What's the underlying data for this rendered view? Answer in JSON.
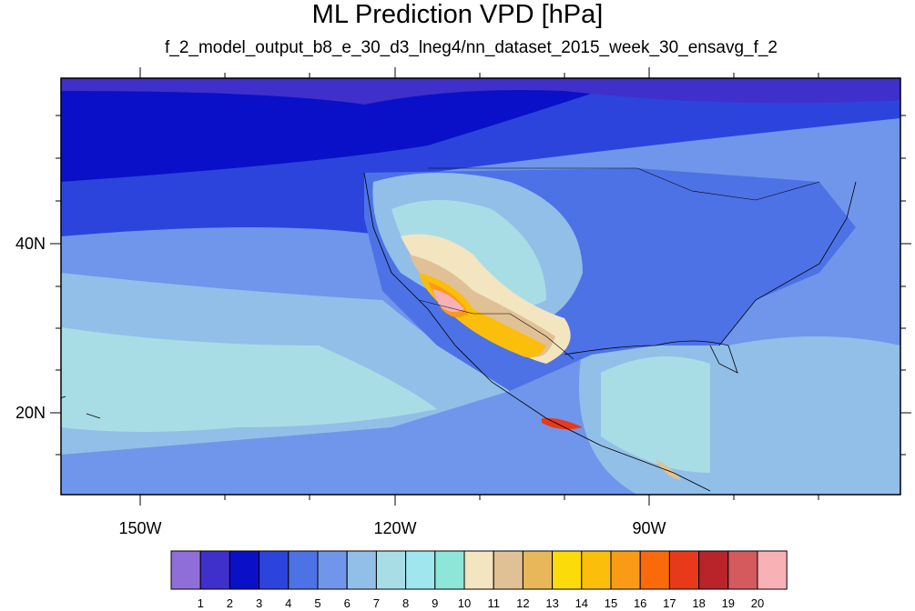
{
  "title": "ML Prediction VPD [hPa]",
  "subtitle": "f_2_model_output_b8_e_30_d3_lneg4/nn_dataset_2015_week_30_ensavg_f_2",
  "map": {
    "lat_labels": [
      "40N",
      "20N"
    ],
    "lon_labels": [
      "150W",
      "120W",
      "90W"
    ]
  },
  "colorbar": {
    "colors": [
      "#8f6ed9",
      "#3f2fcb",
      "#0a10c8",
      "#2c44dc",
      "#4d72e6",
      "#6f96ea",
      "#92bfe8",
      "#a9dde6",
      "#9fe6ef",
      "#8de6d8",
      "#f2e5c0",
      "#e0c195",
      "#e7b75a",
      "#fbdc0a",
      "#fbbe0a",
      "#fa9b15",
      "#fa6a0b",
      "#e83a1a",
      "#b9232a",
      "#d45a5e",
      "#f8b2b6"
    ],
    "labels": [
      "1",
      "2",
      "3",
      "4",
      "5",
      "6",
      "7",
      "8",
      "9",
      "10",
      "11",
      "12",
      "13",
      "14",
      "15",
      "16",
      "17",
      "18",
      "19",
      "20"
    ]
  }
}
